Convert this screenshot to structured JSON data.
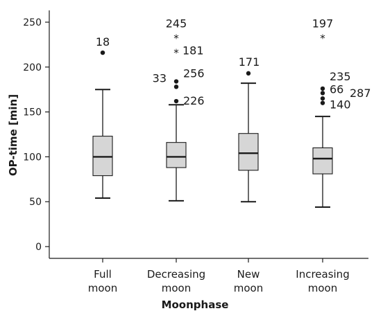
{
  "chart_data": {
    "type": "box",
    "xlabel": "Moonphase",
    "ylabel": "OP-time [min]",
    "ylim": [
      0,
      250
    ],
    "yticks": [
      0,
      50,
      100,
      150,
      200,
      250
    ],
    "categories": [
      [
        "Full",
        "moon"
      ],
      [
        "Decreasing",
        "moon"
      ],
      [
        "New",
        "moon"
      ],
      [
        "Increasing",
        "moon"
      ]
    ],
    "colors": {
      "box_fill": "#d6d6d6",
      "stroke": "#1a1a1a"
    },
    "boxes": [
      {
        "min": 54,
        "q1": 79,
        "median": 100,
        "q3": 123,
        "max": 175,
        "outliers": [
          {
            "value": 216,
            "marker": "dot",
            "label": "18"
          }
        ]
      },
      {
        "min": 51,
        "q1": 88,
        "median": 100,
        "q3": 116,
        "max": 158,
        "outliers": [
          {
            "value": 184,
            "marker": "dot",
            "label": "33"
          },
          {
            "value": 178,
            "marker": "dot",
            "label": "256"
          },
          {
            "value": 162,
            "marker": "dot",
            "label": "226"
          },
          {
            "value": 234,
            "marker": "star",
            "label": "245"
          },
          {
            "value": 218,
            "marker": "star",
            "label": "181"
          }
        ]
      },
      {
        "min": 50,
        "q1": 85,
        "median": 104,
        "q3": 126,
        "max": 182,
        "outliers": [
          {
            "value": 193,
            "marker": "dot",
            "label": "171"
          }
        ]
      },
      {
        "min": 44,
        "q1": 81,
        "median": 98,
        "q3": 110,
        "max": 145,
        "outliers": [
          {
            "value": 176,
            "marker": "dot",
            "label": "235"
          },
          {
            "value": 171,
            "marker": "dot",
            "label": "66"
          },
          {
            "value": 165,
            "marker": "dot",
            "label": "287"
          },
          {
            "value": 160,
            "marker": "dot",
            "label": "140"
          },
          {
            "value": 234,
            "marker": "star",
            "label": "197"
          }
        ]
      }
    ]
  }
}
